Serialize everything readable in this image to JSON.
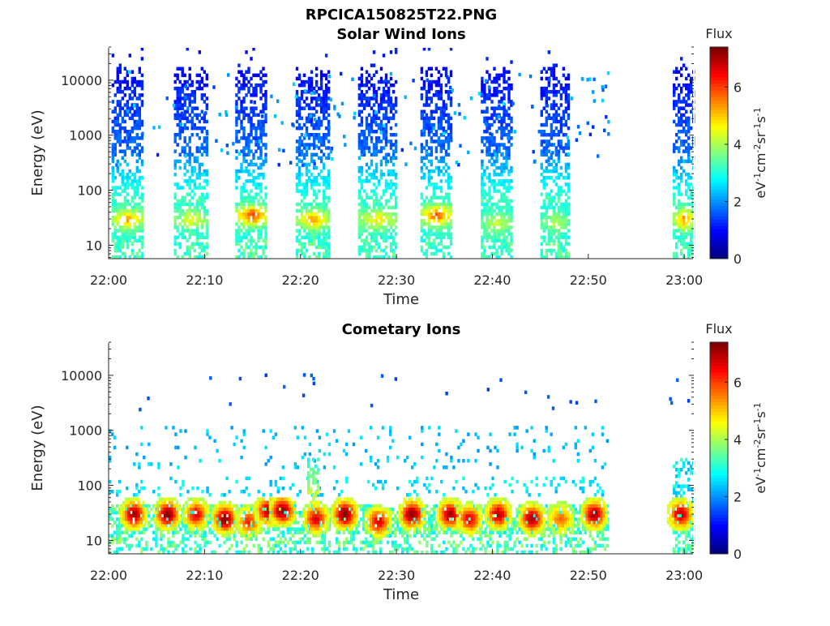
{
  "figure": {
    "title": "RPCICA150825T22.PNG"
  },
  "chart_data": [
    {
      "type": "heatmap",
      "title": "Solar Wind Ions",
      "xlabel": "Time",
      "ylabel": "Energy (eV)",
      "x_ticks": [
        "22:00",
        "22:10",
        "22:20",
        "22:30",
        "22:40",
        "22:50",
        "23:00"
      ],
      "xlim": [
        "22:00",
        "23:01"
      ],
      "y_scale": "log",
      "y_ticks": [
        "10",
        "100",
        "1000",
        "10000"
      ],
      "ylim": [
        5.7,
        40000
      ],
      "colorbar": {
        "label": "Flux",
        "unit_label": "eV-1cm-2sr-1s-1",
        "ticks": [
          "0",
          "2",
          "4",
          "6"
        ],
        "range": [
          0,
          7.4
        ],
        "colormap": "jet"
      },
      "bursts": [
        {
          "start": "22:00.3",
          "end": "22:03.5",
          "peak_energy": 30,
          "peak_flux": 5.0
        },
        {
          "start": "22:06.8",
          "end": "22:10.2",
          "peak_energy": 30,
          "peak_flux": 4.2
        },
        {
          "start": "22:13.2",
          "end": "22:16.5",
          "peak_energy": 35,
          "peak_flux": 5.8
        },
        {
          "start": "22:19.5",
          "end": "22:23.0",
          "peak_energy": 30,
          "peak_flux": 5.0
        },
        {
          "start": "22:26.0",
          "end": "22:30.0",
          "peak_energy": 30,
          "peak_flux": 4.5
        },
        {
          "start": "22:32.5",
          "end": "22:35.8",
          "peak_energy": 35,
          "peak_flux": 5.6
        },
        {
          "start": "22:38.8",
          "end": "22:42.0",
          "peak_energy": 25,
          "peak_flux": 4.0
        },
        {
          "start": "22:45.0",
          "end": "22:48.0",
          "peak_energy": 25,
          "peak_flux": 3.8
        },
        {
          "start": "22:58.8",
          "end": "23:01.0",
          "peak_energy": 30,
          "peak_flux": 5.2
        }
      ]
    },
    {
      "type": "heatmap",
      "title": "Cometary Ions",
      "xlabel": "Time",
      "ylabel": "Energy (eV)",
      "x_ticks": [
        "22:00",
        "22:10",
        "22:20",
        "22:30",
        "22:40",
        "22:50",
        "23:00"
      ],
      "xlim": [
        "22:00",
        "23:01"
      ],
      "y_scale": "log",
      "y_ticks": [
        "10",
        "100",
        "1000",
        "10000"
      ],
      "ylim": [
        5.7,
        40000
      ],
      "colorbar": {
        "label": "Flux",
        "unit_label": "eV-1cm-2sr-1s-1",
        "ticks": [
          "0",
          "2",
          "4",
          "6"
        ],
        "range": [
          0,
          7.4
        ],
        "colormap": "jet"
      },
      "hot_spots": [
        {
          "time": "22:02.5",
          "peak_energy": 30,
          "peak_flux": 7.0
        },
        {
          "time": "22:06.0",
          "peak_energy": 30,
          "peak_flux": 7.2
        },
        {
          "time": "22:09.0",
          "peak_energy": 30,
          "peak_flux": 6.4
        },
        {
          "time": "22:12.0",
          "peak_energy": 25,
          "peak_flux": 7.2
        },
        {
          "time": "22:14.5",
          "peak_energy": 22,
          "peak_flux": 6.0
        },
        {
          "time": "22:16.5",
          "peak_energy": 35,
          "peak_flux": 6.8
        },
        {
          "time": "22:18.0",
          "peak_energy": 35,
          "peak_flux": 7.2
        },
        {
          "time": "22:21.5",
          "peak_energy": 25,
          "peak_flux": 6.5
        },
        {
          "time": "22:24.5",
          "peak_energy": 30,
          "peak_flux": 7.3
        },
        {
          "time": "22:28.0",
          "peak_energy": 22,
          "peak_flux": 6.5
        },
        {
          "time": "22:31.5",
          "peak_energy": 30,
          "peak_flux": 7.2
        },
        {
          "time": "22:35.5",
          "peak_energy": 30,
          "peak_flux": 7.0
        },
        {
          "time": "22:37.5",
          "peak_energy": 25,
          "peak_flux": 6.5
        },
        {
          "time": "22:40.5",
          "peak_energy": 30,
          "peak_flux": 6.8
        },
        {
          "time": "22:44.0",
          "peak_energy": 25,
          "peak_flux": 7.0
        },
        {
          "time": "22:47.0",
          "peak_energy": 25,
          "peak_flux": 5.5
        },
        {
          "time": "22:50.5",
          "peak_energy": 30,
          "peak_flux": 7.0
        },
        {
          "time": "22:59.5",
          "peak_energy": 30,
          "peak_flux": 6.8
        }
      ]
    }
  ]
}
